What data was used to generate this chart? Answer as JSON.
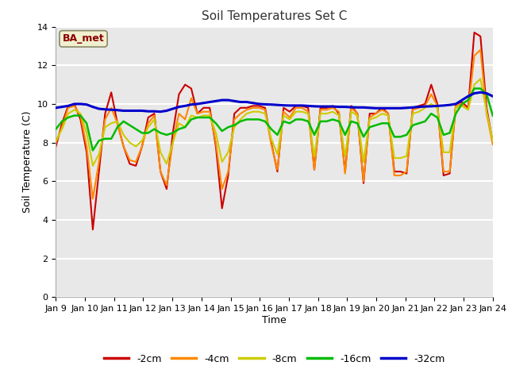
{
  "title": "Soil Temperatures Set C",
  "xlabel": "Time",
  "ylabel": "Soil Temperature (C)",
  "ylim": [
    0,
    14
  ],
  "yticks": [
    0,
    2,
    4,
    6,
    8,
    10,
    12,
    14
  ],
  "plot_bg_color": "#e8e8e8",
  "fig_bg_color": "#ffffff",
  "grid_color": "#ffffff",
  "annotation_text": "BA_met",
  "annotation_color": "#8b0000",
  "annotation_bg": "#f0f0d0",
  "series_colors": {
    "-2cm": "#cc0000",
    "-4cm": "#ff8800",
    "-8cm": "#cccc00",
    "-16cm": "#00bb00",
    "-32cm": "#0000cc"
  },
  "x_tick_labels": [
    "Jan 9 ",
    "Jan 10",
    "Jan 11",
    "Jan 12",
    "Jan 13",
    "Jan 14",
    "Jan 15",
    "Jan 16",
    "Jan 17",
    "Jan 18",
    "Jan 19",
    "Jan 20",
    "Jan 21",
    "Jan 22",
    "Jan 23",
    "Jan 24"
  ],
  "x_tick_positions": [
    0,
    1,
    2,
    3,
    4,
    5,
    6,
    7,
    8,
    9,
    10,
    11,
    12,
    13,
    14,
    15
  ],
  "t_2cm": [
    7.8,
    9.0,
    9.9,
    10.0,
    9.2,
    7.5,
    3.5,
    6.5,
    9.5,
    10.6,
    9.0,
    7.8,
    6.9,
    6.8,
    7.8,
    9.3,
    9.5,
    6.5,
    5.6,
    8.5,
    10.5,
    11.0,
    10.8,
    9.5,
    9.8,
    9.8,
    7.8,
    4.6,
    6.3,
    9.5,
    9.8,
    9.8,
    9.9,
    9.9,
    9.8,
    8.0,
    6.5,
    9.8,
    9.6,
    9.9,
    9.9,
    9.8,
    6.6,
    9.8,
    9.8,
    9.9,
    9.5,
    6.5,
    9.9,
    9.5,
    5.9,
    9.5,
    9.5,
    9.8,
    9.5,
    6.5,
    6.5,
    6.4,
    9.8,
    9.9,
    10.0,
    11.0,
    10.0,
    6.3,
    6.4,
    10.0,
    10.1,
    9.8,
    13.7,
    13.5,
    9.8,
    8.0
  ],
  "t_4cm": [
    8.0,
    8.8,
    9.8,
    9.9,
    9.4,
    7.8,
    5.1,
    7.0,
    9.2,
    9.8,
    9.0,
    7.8,
    7.1,
    7.0,
    7.8,
    9.0,
    9.4,
    6.5,
    5.8,
    8.0,
    9.5,
    9.2,
    10.3,
    9.5,
    9.6,
    9.6,
    8.0,
    5.6,
    6.5,
    9.2,
    9.5,
    9.7,
    9.8,
    9.8,
    9.7,
    7.9,
    6.6,
    9.6,
    9.3,
    9.8,
    9.8,
    9.6,
    6.6,
    9.7,
    9.7,
    9.8,
    9.6,
    6.4,
    9.8,
    9.5,
    6.0,
    9.3,
    9.5,
    9.7,
    9.5,
    6.3,
    6.3,
    6.5,
    9.7,
    9.8,
    9.9,
    10.5,
    9.9,
    6.5,
    6.5,
    9.9,
    10.0,
    9.7,
    12.5,
    12.8,
    9.5,
    7.9
  ],
  "t_8cm": [
    8.1,
    8.7,
    9.5,
    9.7,
    9.5,
    8.5,
    6.8,
    7.4,
    8.8,
    9.0,
    9.1,
    8.4,
    8.0,
    7.8,
    8.1,
    8.8,
    9.2,
    7.5,
    6.9,
    8.0,
    9.0,
    8.8,
    9.4,
    9.3,
    9.4,
    9.4,
    8.5,
    7.0,
    7.5,
    8.8,
    9.2,
    9.5,
    9.6,
    9.6,
    9.5,
    8.2,
    7.4,
    9.4,
    9.2,
    9.6,
    9.6,
    9.5,
    7.3,
    9.5,
    9.5,
    9.6,
    9.4,
    7.3,
    9.6,
    9.4,
    7.0,
    9.2,
    9.3,
    9.5,
    9.4,
    7.2,
    7.2,
    7.3,
    9.5,
    9.6,
    9.8,
    10.0,
    9.8,
    7.5,
    7.5,
    9.8,
    9.9,
    9.7,
    11.0,
    11.3,
    9.6,
    8.1
  ],
  "t_16cm": [
    8.7,
    9.1,
    9.3,
    9.4,
    9.4,
    9.0,
    7.6,
    8.1,
    8.2,
    8.2,
    8.8,
    9.1,
    8.9,
    8.7,
    8.5,
    8.5,
    8.7,
    8.5,
    8.4,
    8.5,
    8.7,
    8.8,
    9.2,
    9.3,
    9.3,
    9.3,
    9.0,
    8.6,
    8.8,
    8.9,
    9.1,
    9.2,
    9.2,
    9.2,
    9.1,
    8.7,
    8.4,
    9.1,
    9.0,
    9.2,
    9.2,
    9.1,
    8.4,
    9.1,
    9.1,
    9.2,
    9.1,
    8.4,
    9.1,
    9.0,
    8.3,
    8.8,
    8.9,
    9.0,
    9.0,
    8.3,
    8.3,
    8.4,
    8.9,
    9.0,
    9.1,
    9.5,
    9.3,
    8.4,
    8.5,
    9.5,
    10.0,
    10.2,
    10.8,
    10.8,
    10.5,
    9.4
  ],
  "t_32cm": [
    9.8,
    9.85,
    9.9,
    10.0,
    10.0,
    9.97,
    9.85,
    9.75,
    9.72,
    9.7,
    9.68,
    9.65,
    9.65,
    9.65,
    9.65,
    9.62,
    9.62,
    9.6,
    9.65,
    9.75,
    9.85,
    9.9,
    9.97,
    10.0,
    10.05,
    10.1,
    10.15,
    10.2,
    10.2,
    10.15,
    10.1,
    10.1,
    10.05,
    10.0,
    9.98,
    9.97,
    9.95,
    9.93,
    9.92,
    9.92,
    9.92,
    9.9,
    9.88,
    9.87,
    9.87,
    9.87,
    9.85,
    9.85,
    9.83,
    9.82,
    9.82,
    9.8,
    9.78,
    9.78,
    9.78,
    9.78,
    9.78,
    9.8,
    9.82,
    9.85,
    9.87,
    9.88,
    9.9,
    9.92,
    9.95,
    10.0,
    10.2,
    10.4,
    10.55,
    10.6,
    10.55,
    10.4
  ]
}
